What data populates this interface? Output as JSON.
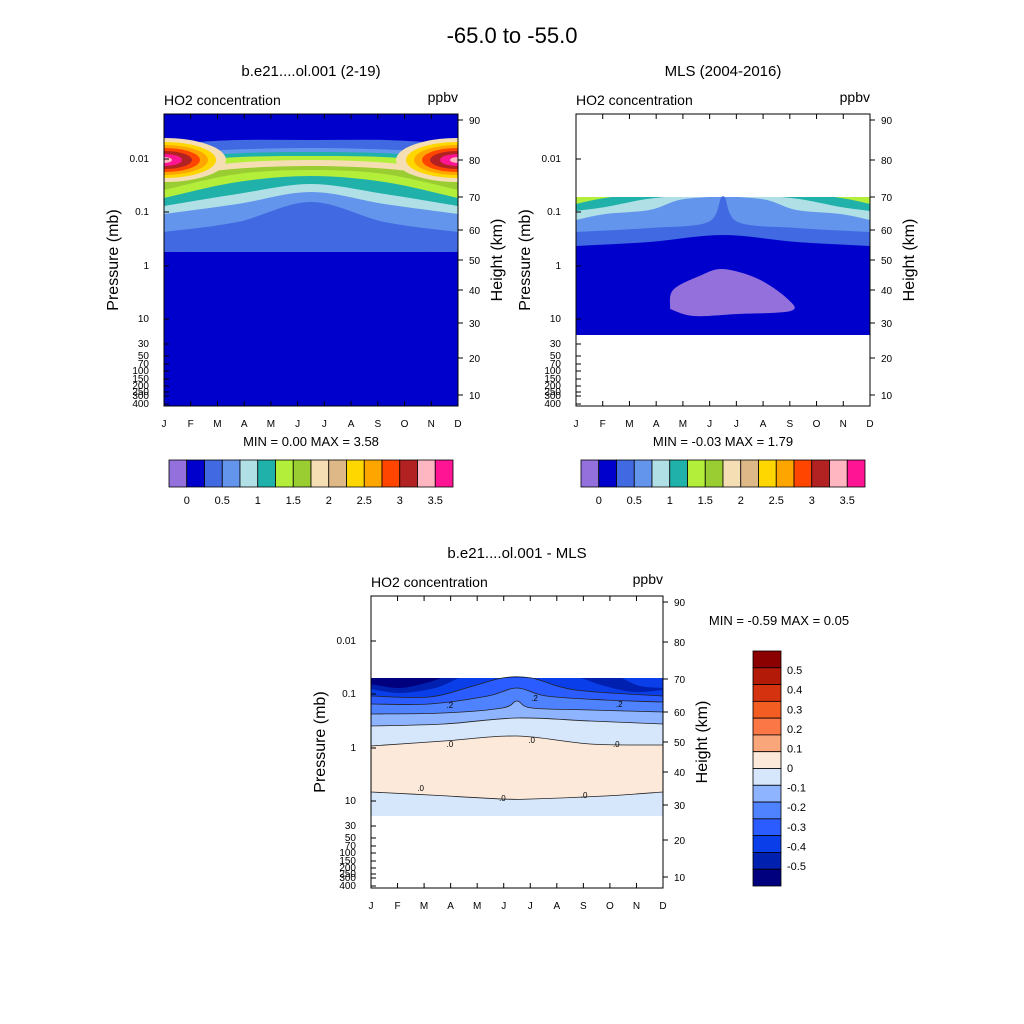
{
  "figure": {
    "title": "-65.0 to -55.0"
  },
  "colors": {
    "model_levels": [
      "#9370db",
      "#0000cd",
      "#4169e1",
      "#6495ed",
      "#b0e0e6",
      "#20b2aa",
      "#b3ee3a",
      "#9acd32",
      "#f5deb3",
      "#deb887",
      "#ffd700",
      "#ffa500",
      "#ff4500",
      "#b22222",
      "#ffb6c1",
      "#ff1493"
    ],
    "diff_levels": [
      "#00007f",
      "#0020b0",
      "#0a3ee8",
      "#2b5cff",
      "#4f82ff",
      "#8fb4ff",
      "#d6e6fb",
      "#fde9d9",
      "#f9a77a",
      "#fb7846",
      "#f45d22",
      "#d53310",
      "#b31b08",
      "#8b0000"
    ]
  },
  "chart_data": [
    {
      "type": "heatmap",
      "panel_title": "b.e21....ol.001 (2-19)",
      "left_string": "HO2 concentration",
      "right_string": "ppbv",
      "ylabel": "Pressure (mb)",
      "ylabel_right": "Height (km)",
      "x_categories": [
        "J",
        "F",
        "M",
        "A",
        "M",
        "J",
        "J",
        "A",
        "S",
        "O",
        "N",
        "D"
      ],
      "y_ticks_pressure": [
        "0.01",
        "0.1",
        "1",
        "10",
        "30",
        "50",
        "70",
        "100",
        "150",
        "200",
        "250",
        "300",
        "400"
      ],
      "y_ticks_height": [
        "90",
        "80",
        "70",
        "60",
        "50",
        "40",
        "30",
        "20",
        "10"
      ],
      "stats": "MIN =   0.00  MAX =   3.58",
      "min": 0.0,
      "max": 3.58,
      "colorbar_labels": [
        "0",
        "0.5",
        "1",
        "1.5",
        "2",
        "2.5",
        "3",
        "3.5"
      ]
    },
    {
      "type": "heatmap",
      "panel_title": "MLS (2004-2016)",
      "left_string": "HO2 concentration",
      "right_string": "ppbv",
      "ylabel": "Pressure (mb)",
      "ylabel_right": "Height (km)",
      "x_categories": [
        "J",
        "F",
        "M",
        "A",
        "M",
        "J",
        "J",
        "A",
        "S",
        "O",
        "N",
        "D"
      ],
      "y_ticks_pressure": [
        "0.01",
        "0.1",
        "1",
        "10",
        "30",
        "50",
        "70",
        "100",
        "150",
        "200",
        "250",
        "300",
        "400"
      ],
      "y_ticks_height": [
        "90",
        "80",
        "70",
        "60",
        "50",
        "40",
        "30",
        "20",
        "10"
      ],
      "stats": "MIN =  -0.03  MAX =   1.79",
      "min": -0.03,
      "max": 1.79,
      "colorbar_labels": [
        "0",
        "0.5",
        "1",
        "1.5",
        "2",
        "2.5",
        "3",
        "3.5"
      ]
    },
    {
      "type": "heatmap",
      "panel_title": "b.e21....ol.001 - MLS",
      "left_string": "HO2 concentration",
      "right_string": "ppbv",
      "ylabel": "Pressure (mb)",
      "ylabel_right": "Height (km)",
      "x_categories": [
        "J",
        "F",
        "M",
        "A",
        "M",
        "J",
        "J",
        "A",
        "S",
        "O",
        "N",
        "D"
      ],
      "y_ticks_pressure": [
        "0.01",
        "0.1",
        "1",
        "10",
        "30",
        "50",
        "70",
        "100",
        "150",
        "200",
        "250",
        "300",
        "400"
      ],
      "y_ticks_height": [
        "90",
        "80",
        "70",
        "60",
        "50",
        "40",
        "30",
        "20",
        "10"
      ],
      "stats": "MIN =  -0.59  MAX =   0.05",
      "min": -0.59,
      "max": 0.05,
      "contour_labels": [
        ".2",
        ".0"
      ],
      "colorbar_labels": [
        "0.5",
        "0.4",
        "0.3",
        "0.2",
        "0.1",
        "0",
        "-0.1",
        "-0.2",
        "-0.3",
        "-0.4",
        "-0.5"
      ]
    }
  ]
}
